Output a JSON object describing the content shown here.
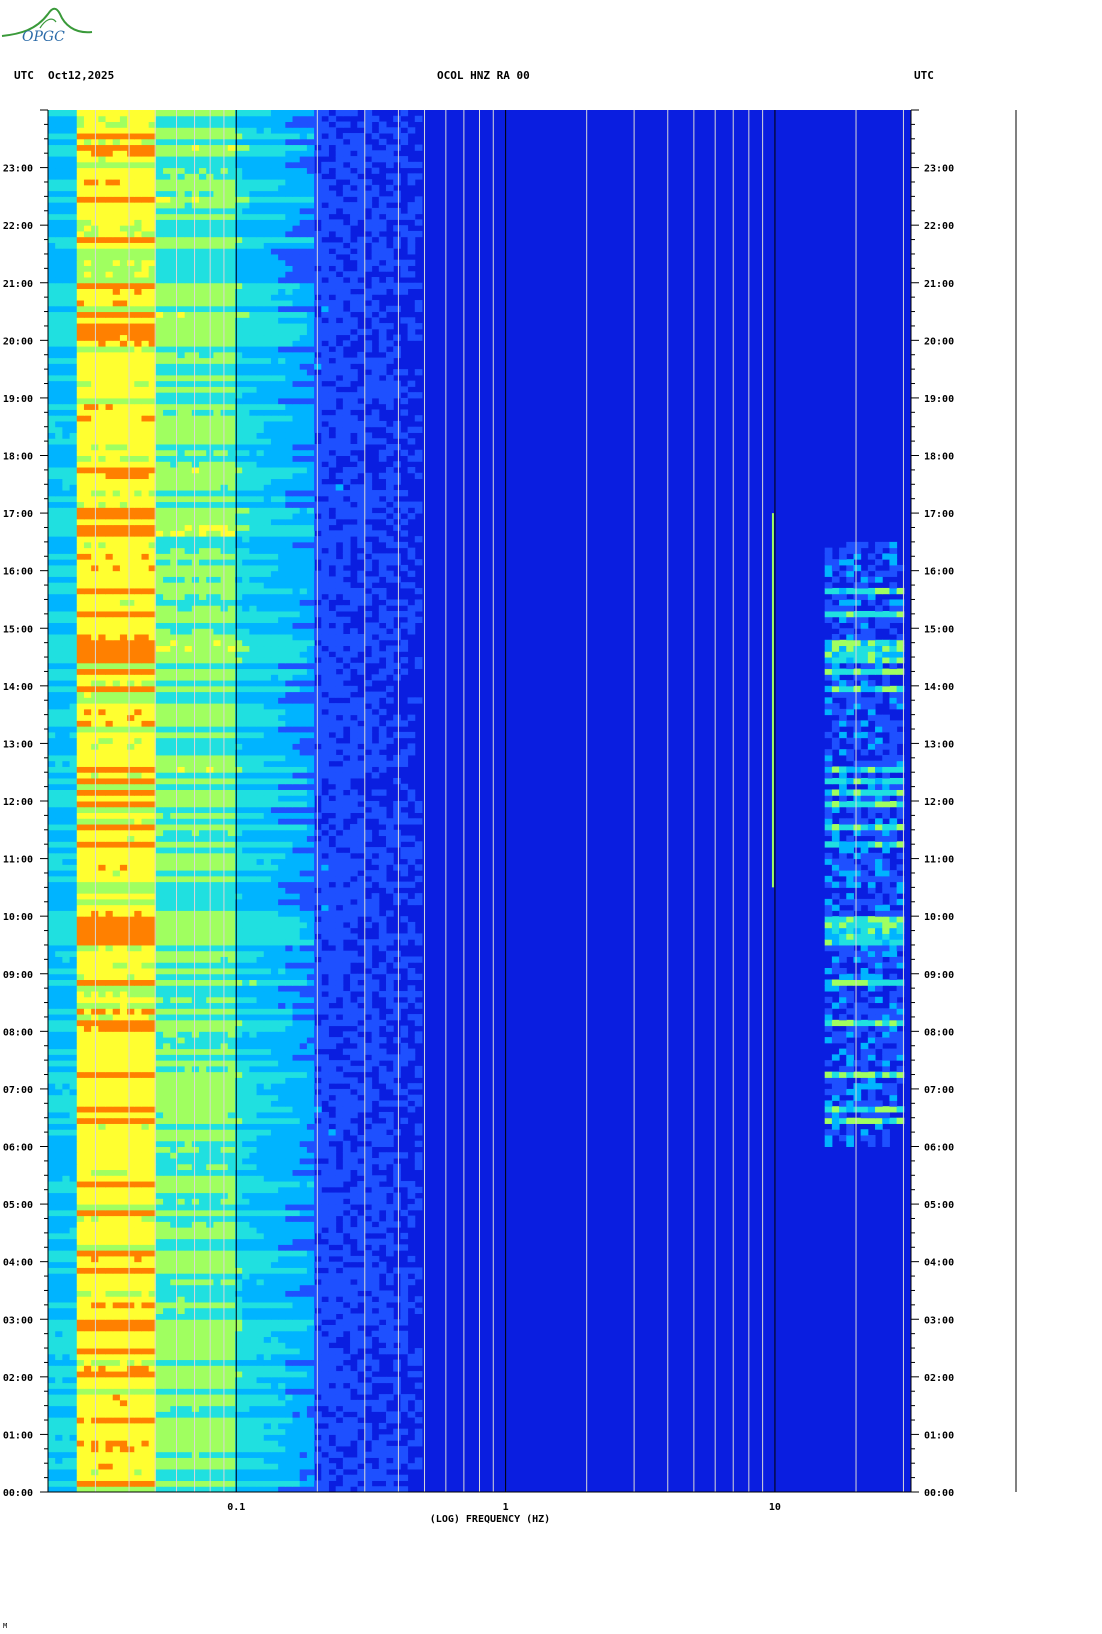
{
  "header": {
    "tz_left": "UTC",
    "date": "Oct12,2025",
    "station": "OCOL HNZ RA 00",
    "tz_right": "UTC"
  },
  "logo": {
    "text": "OPGC",
    "icon": "opgc-logo-icon"
  },
  "footer_mark": "M",
  "colors": {
    "background": "#0a1ee0",
    "grid": "#d8d8d8",
    "axis": "#000000"
  },
  "chart_data": {
    "type": "heatmap",
    "title": "OCOL HNZ RA 00",
    "xlabel": "(LOG) FREQUENCY (HZ)",
    "x_scale": "log",
    "xlim": [
      0.02,
      32
    ],
    "x_ticks": [
      {
        "value": 0.1,
        "label": "0.1"
      },
      {
        "value": 1,
        "label": "1"
      },
      {
        "value": 10,
        "label": "10"
      }
    ],
    "ylim": [
      0,
      24
    ],
    "y_ticks": [
      "00:00",
      "01:00",
      "02:00",
      "03:00",
      "04:00",
      "05:00",
      "06:00",
      "07:00",
      "08:00",
      "09:00",
      "10:00",
      "11:00",
      "12:00",
      "13:00",
      "14:00",
      "15:00",
      "16:00",
      "17:00",
      "18:00",
      "19:00",
      "20:00",
      "21:00",
      "22:00",
      "23:00"
    ],
    "colorscale": [
      "#0a1ee0",
      "#1e50ff",
      "#00b4ff",
      "#20e0e0",
      "#a0ff60",
      "#ffff30",
      "#ff8000",
      "#e00000"
    ],
    "features": [
      {
        "name": "microseism band",
        "freq_range_hz": [
          0.025,
          0.1
        ],
        "level": "high"
      },
      {
        "name": "10 Hz tone",
        "freq_hz": 10,
        "time_range_h": [
          10.5,
          17.0
        ]
      },
      {
        "name": "cultural noise",
        "freq_range_hz": [
          15,
          30
        ],
        "time_range_h": [
          6.0,
          16.5
        ],
        "level": "medium-high"
      }
    ]
  }
}
